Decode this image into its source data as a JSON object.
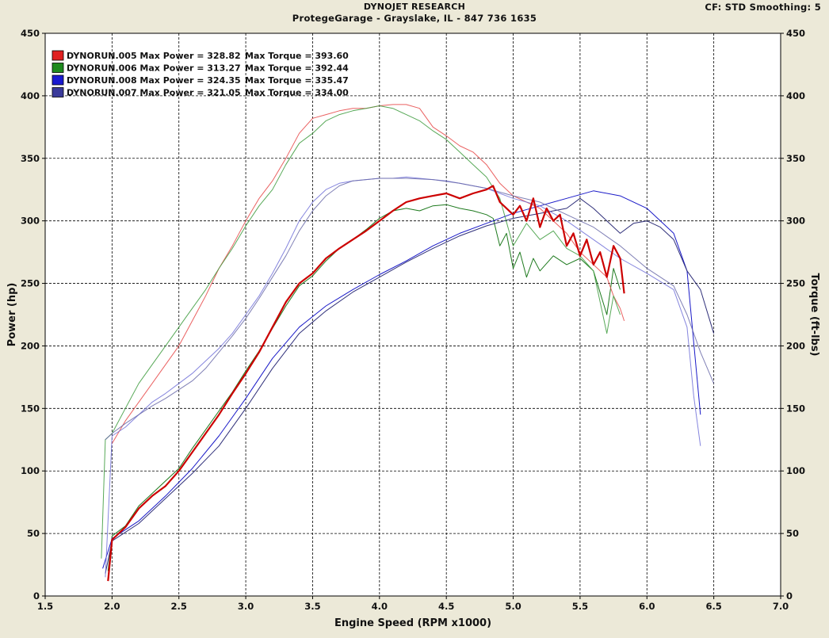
{
  "header": {
    "title": "DYNOJET RESEARCH",
    "subtitle": "ProtegeGarage - Grayslake, IL - 847 736 1635",
    "settings": "CF: STD  Smoothing: 5"
  },
  "chart_data": {
    "type": "line",
    "title": "DYNOJET RESEARCH",
    "subtitle": "ProtegeGarage - Grayslake, IL - 847 736 1635",
    "xlabel": "Engine Speed (RPM x1000)",
    "ylabel": "Power (hp)",
    "y2label": "Torque (ft-lbs)",
    "xlim": [
      1.5,
      7.0
    ],
    "ylim": [
      0,
      450
    ],
    "y2lim": [
      0,
      450
    ],
    "xticks": [
      "1.5",
      "2.0",
      "2.5",
      "3.0",
      "3.5",
      "4.0",
      "4.5",
      "5.0",
      "5.5",
      "6.0",
      "6.5",
      "7.0"
    ],
    "yticks": [
      "0",
      "50",
      "100",
      "150",
      "200",
      "250",
      "300",
      "350",
      "400",
      "450"
    ],
    "y2ticks": [
      "0",
      "50",
      "100",
      "150",
      "200",
      "250",
      "300",
      "350",
      "400",
      "450"
    ],
    "grid": true,
    "legend_position": "top-left",
    "legend": [
      {
        "label": "DYNORUN.005 Max Power = 328.82",
        "torque_label": "Max Torque = 393.60",
        "color": "#e02020"
      },
      {
        "label": "DYNORUN.006 Max Power = 313.27",
        "torque_label": "Max Torque = 392.44",
        "color": "#1e8a1e"
      },
      {
        "label": "DYNORUN.008 Max Power = 324.35",
        "torque_label": "Max Torque = 335.47",
        "color": "#1a1ad0"
      },
      {
        "label": "DYNORUN.007 Max Power = 321.05",
        "torque_label": "Max Torque = 334.00",
        "color": "#3a3a9a"
      }
    ],
    "series": [
      {
        "name": "DYNORUN.005 Power",
        "color": "#cc0000",
        "width": 2.2,
        "opacity": 1,
        "x": [
          1.97,
          2.0,
          2.1,
          2.2,
          2.3,
          2.4,
          2.5,
          2.6,
          2.7,
          2.8,
          2.9,
          3.0,
          3.1,
          3.2,
          3.3,
          3.4,
          3.5,
          3.6,
          3.7,
          3.8,
          3.9,
          4.0,
          4.1,
          4.2,
          4.3,
          4.4,
          4.5,
          4.6,
          4.7,
          4.8,
          4.85,
          4.9,
          5.0,
          5.05,
          5.1,
          5.15,
          5.2,
          5.25,
          5.3,
          5.35,
          5.4,
          5.45,
          5.5,
          5.55,
          5.6,
          5.65,
          5.7,
          5.75,
          5.8,
          5.83
        ],
        "y": [
          12,
          45,
          55,
          70,
          80,
          88,
          100,
          115,
          130,
          145,
          162,
          178,
          195,
          215,
          235,
          250,
          258,
          270,
          278,
          285,
          292,
          300,
          308,
          315,
          318,
          320,
          322,
          318,
          322,
          325,
          328,
          315,
          305,
          312,
          300,
          318,
          295,
          310,
          300,
          305,
          280,
          290,
          272,
          285,
          265,
          275,
          255,
          280,
          270,
          242
        ]
      },
      {
        "name": "DYNORUN.006 Power",
        "color": "#1e7a1e",
        "width": 1,
        "opacity": 1,
        "x": [
          1.97,
          2.0,
          2.1,
          2.2,
          2.3,
          2.4,
          2.5,
          2.6,
          2.7,
          2.8,
          2.9,
          3.0,
          3.1,
          3.2,
          3.3,
          3.4,
          3.5,
          3.6,
          3.7,
          3.8,
          3.9,
          4.0,
          4.1,
          4.2,
          4.3,
          4.4,
          4.5,
          4.6,
          4.7,
          4.8,
          4.85,
          4.9,
          4.95,
          5.0,
          5.05,
          5.1,
          5.15,
          5.2,
          5.3,
          5.4,
          5.5,
          5.6,
          5.7,
          5.75,
          5.8
        ],
        "y": [
          20,
          48,
          56,
          72,
          82,
          92,
          102,
          118,
          133,
          148,
          163,
          180,
          196,
          214,
          232,
          248,
          256,
          268,
          278,
          285,
          293,
          302,
          308,
          310,
          308,
          312,
          313,
          310,
          308,
          305,
          302,
          280,
          290,
          262,
          275,
          255,
          270,
          260,
          272,
          265,
          270,
          260,
          225,
          262,
          245
        ]
      },
      {
        "name": "DYNORUN.008 Power",
        "color": "#1a1ac8",
        "width": 1,
        "opacity": 1,
        "x": [
          1.93,
          2.0,
          2.2,
          2.4,
          2.6,
          2.8,
          3.0,
          3.2,
          3.4,
          3.6,
          3.8,
          4.0,
          4.2,
          4.4,
          4.6,
          4.8,
          5.0,
          5.2,
          5.4,
          5.6,
          5.8,
          6.0,
          6.2,
          6.3,
          6.4
        ],
        "y": [
          22,
          46,
          60,
          80,
          102,
          128,
          158,
          190,
          215,
          232,
          245,
          257,
          268,
          280,
          290,
          298,
          306,
          312,
          318,
          324,
          320,
          310,
          290,
          260,
          145
        ]
      },
      {
        "name": "DYNORUN.007 Power",
        "color": "#30307a",
        "width": 1,
        "opacity": 1,
        "x": [
          1.95,
          2.0,
          2.2,
          2.4,
          2.6,
          2.8,
          3.0,
          3.2,
          3.4,
          3.6,
          3.8,
          4.0,
          4.2,
          4.4,
          4.6,
          4.8,
          5.0,
          5.2,
          5.4,
          5.5,
          5.6,
          5.7,
          5.8,
          5.9,
          6.0,
          6.1,
          6.2,
          6.3,
          6.4,
          6.5
        ],
        "y": [
          18,
          44,
          58,
          78,
          98,
          120,
          150,
          182,
          210,
          228,
          243,
          255,
          267,
          278,
          288,
          296,
          302,
          306,
          310,
          318,
          310,
          300,
          290,
          298,
          300,
          295,
          285,
          260,
          245,
          210
        ]
      },
      {
        "name": "DYNORUN.005 Torque",
        "color": "#e85050",
        "width": 1,
        "opacity": 0.9,
        "x": [
          2.0,
          2.1,
          2.2,
          2.3,
          2.4,
          2.5,
          2.6,
          2.7,
          2.8,
          2.9,
          3.0,
          3.1,
          3.2,
          3.3,
          3.4,
          3.5,
          3.6,
          3.7,
          3.8,
          3.9,
          4.0,
          4.1,
          4.2,
          4.3,
          4.4,
          4.5,
          4.6,
          4.7,
          4.8,
          4.9,
          5.0,
          5.1,
          5.2,
          5.3,
          5.4,
          5.5,
          5.6,
          5.7,
          5.75,
          5.8,
          5.83
        ],
        "y": [
          122,
          140,
          155,
          170,
          185,
          200,
          220,
          240,
          262,
          280,
          300,
          318,
          332,
          350,
          370,
          382,
          385,
          388,
          390,
          390,
          392,
          393,
          393,
          390,
          375,
          368,
          360,
          355,
          345,
          330,
          320,
          315,
          310,
          300,
          290,
          275,
          265,
          255,
          240,
          230,
          220
        ]
      },
      {
        "name": "DYNORUN.006 Torque",
        "color": "#46a046",
        "width": 1,
        "opacity": 0.9,
        "x": [
          1.92,
          1.95,
          2.0,
          2.1,
          2.2,
          2.3,
          2.4,
          2.5,
          2.6,
          2.7,
          2.8,
          2.9,
          3.0,
          3.1,
          3.2,
          3.3,
          3.4,
          3.5,
          3.6,
          3.7,
          3.8,
          3.9,
          4.0,
          4.1,
          4.2,
          4.3,
          4.4,
          4.5,
          4.6,
          4.7,
          4.8,
          4.9,
          5.0,
          5.1,
          5.2,
          5.3,
          5.4,
          5.5,
          5.6,
          5.7,
          5.75,
          5.8
        ],
        "y": [
          30,
          125,
          130,
          150,
          170,
          185,
          200,
          215,
          230,
          245,
          262,
          278,
          296,
          312,
          325,
          345,
          362,
          370,
          380,
          385,
          388,
          390,
          392,
          390,
          385,
          380,
          372,
          365,
          355,
          345,
          335,
          318,
          280,
          298,
          285,
          292,
          278,
          272,
          260,
          210,
          240,
          225
        ]
      },
      {
        "name": "DYNORUN.008 Torque",
        "color": "#7070d8",
        "width": 1,
        "opacity": 0.85,
        "x": [
          1.95,
          2.0,
          2.1,
          2.2,
          2.3,
          2.4,
          2.5,
          2.6,
          2.7,
          2.8,
          2.9,
          3.0,
          3.1,
          3.2,
          3.3,
          3.4,
          3.5,
          3.6,
          3.7,
          3.8,
          3.9,
          4.0,
          4.1,
          4.2,
          4.3,
          4.4,
          4.5,
          4.6,
          4.7,
          4.8,
          4.9,
          5.0,
          5.2,
          5.4,
          5.6,
          5.8,
          6.0,
          6.2,
          6.3,
          6.35,
          6.4
        ],
        "y": [
          15,
          128,
          135,
          145,
          155,
          162,
          170,
          178,
          188,
          198,
          210,
          225,
          240,
          258,
          278,
          300,
          315,
          325,
          330,
          332,
          333,
          334,
          334,
          335,
          334,
          333,
          332,
          330,
          328,
          326,
          322,
          318,
          312,
          300,
          285,
          270,
          258,
          245,
          215,
          160,
          120
        ]
      },
      {
        "name": "DYNORUN.007 Torque",
        "color": "#6868a8",
        "width": 1,
        "opacity": 0.85,
        "x": [
          1.95,
          2.0,
          2.1,
          2.2,
          2.3,
          2.4,
          2.5,
          2.6,
          2.7,
          2.8,
          2.9,
          3.0,
          3.1,
          3.2,
          3.3,
          3.4,
          3.5,
          3.6,
          3.7,
          3.8,
          3.9,
          4.0,
          4.2,
          4.4,
          4.6,
          4.8,
          5.0,
          5.2,
          5.4,
          5.6,
          5.8,
          6.0,
          6.2,
          6.3,
          6.4,
          6.5
        ],
        "y": [
          125,
          130,
          138,
          145,
          152,
          158,
          165,
          172,
          182,
          195,
          208,
          222,
          238,
          255,
          272,
          292,
          308,
          320,
          328,
          332,
          333,
          334,
          334,
          333,
          330,
          326,
          320,
          315,
          305,
          295,
          280,
          262,
          248,
          225,
          195,
          170
        ]
      }
    ]
  }
}
